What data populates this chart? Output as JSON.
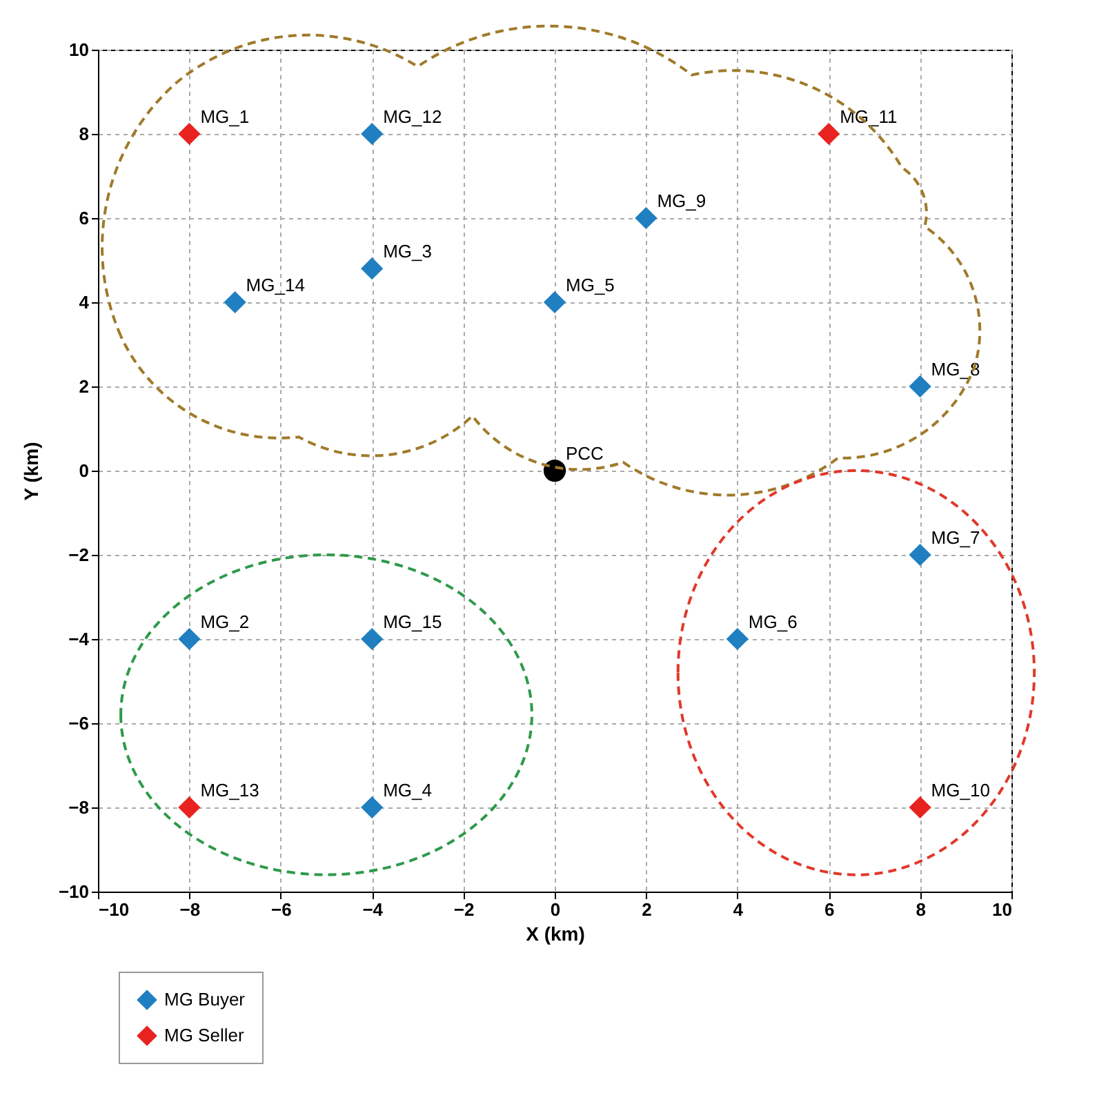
{
  "chart_data": {
    "type": "scatter",
    "xlabel": "X (km)",
    "ylabel": "Y (km)",
    "xlim": [
      -10,
      10
    ],
    "ylim": [
      -10,
      10
    ],
    "xticks": [
      -10,
      -8,
      -6,
      -4,
      -2,
      0,
      2,
      4,
      6,
      8,
      10
    ],
    "yticks": [
      -10,
      -8,
      -6,
      -4,
      -2,
      0,
      2,
      4,
      6,
      8,
      10
    ],
    "grid": true,
    "legend": "bottom left",
    "marker": "diamond",
    "series": [
      {
        "name": "MG Buyer",
        "color": "#1f7fc0",
        "x": [
          -4,
          2,
          -4,
          -7,
          0,
          8,
          8,
          4,
          -8,
          -4,
          -4
        ],
        "values": [
          8,
          6,
          4.8,
          4,
          4,
          2,
          -2,
          -4,
          -4,
          -4,
          -8
        ]
      },
      {
        "name": "MG Seller",
        "color": "#e8231f",
        "x": [
          -8,
          6,
          -8,
          8
        ],
        "values": [
          8,
          8,
          -8,
          -8
        ]
      },
      {
        "color": "#000000",
        "marker": "circle",
        "x": [
          0
        ],
        "values": [
          0
        ]
      }
    ],
    "annotations": [
      {
        "text": "MG_12",
        "x": -4,
        "y": 8
      },
      {
        "text": "MG_9",
        "x": 2,
        "y": 6
      },
      {
        "text": "MG_3",
        "x": -4,
        "y": 4.8
      },
      {
        "text": "MG_14",
        "x": -7,
        "y": 4
      },
      {
        "text": "MG_5",
        "x": 0,
        "y": 4
      },
      {
        "text": "MG_8",
        "x": 8,
        "y": 2
      },
      {
        "text": "MG_7",
        "x": 8,
        "y": -2
      },
      {
        "text": "MG_6",
        "x": 4,
        "y": -4
      },
      {
        "text": "MG_2",
        "x": -8,
        "y": -4
      },
      {
        "text": "MG_15",
        "x": -4,
        "y": -4
      },
      {
        "text": "MG_4",
        "x": -4,
        "y": -8
      },
      {
        "text": "MG_1",
        "x": -8,
        "y": 8
      },
      {
        "text": "MG_11",
        "x": 6,
        "y": 8
      },
      {
        "text": "MG_13",
        "x": -8,
        "y": -8
      },
      {
        "text": "MG_10",
        "x": 8,
        "y": -8
      },
      {
        "text": "PCC",
        "x": 0,
        "y": 0
      }
    ]
  }
}
